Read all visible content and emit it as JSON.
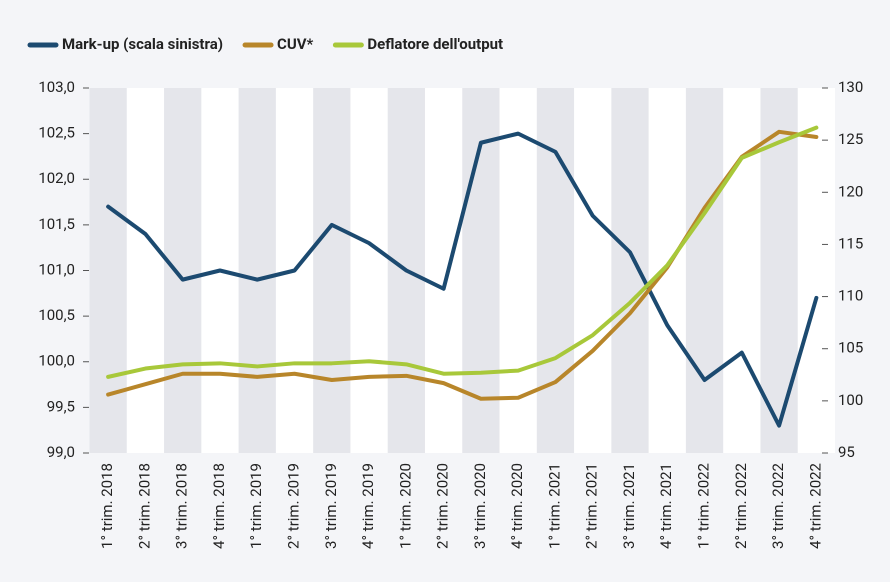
{
  "chart_data": {
    "type": "line",
    "categories": [
      "1° trim. 2018",
      "2° trim. 2018",
      "3° trim. 2018",
      "4° trim. 2018",
      "1° trim. 2019",
      "2° trim. 2019",
      "3° trim. 2019",
      "4° trim. 2019",
      "1° trim. 2020",
      "2° trim. 2020",
      "3° trim. 2020",
      "4° trim. 2020",
      "1° trim. 2021",
      "2° trim. 2021",
      "3° trim. 2021",
      "4° trim. 2021",
      "1° trim. 2022",
      "2° trim. 2022",
      "3° trim. 2022",
      "4° trim. 2022"
    ],
    "series": [
      {
        "name": "Mark-up (scala sinistra)",
        "color": "#1c4a70",
        "values": [
          101.7,
          101.4,
          100.9,
          101.0,
          100.9,
          101.0,
          101.5,
          101.3,
          101.0,
          100.8,
          102.4,
          102.5,
          102.3,
          101.6,
          101.2,
          100.4,
          99.8,
          100.1,
          99.3,
          100.7
        ]
      },
      {
        "name": "CUV*",
        "color": "#b8862a",
        "axis": "y2",
        "values": [
          100.6,
          101.6,
          102.6,
          102.6,
          102.3,
          102.6,
          102.0,
          102.3,
          102.4,
          101.7,
          100.2,
          100.3,
          101.8,
          104.8,
          108.4,
          112.8,
          118.5,
          123.4,
          125.8,
          125.3
        ]
      },
      {
        "name": "Deflatore dell'output",
        "color": "#a8c83a",
        "axis": "y2",
        "values": [
          102.3,
          103.1,
          103.5,
          103.6,
          103.3,
          103.6,
          103.6,
          103.8,
          103.5,
          102.6,
          102.7,
          102.9,
          104.1,
          106.3,
          109.4,
          113.0,
          118.0,
          123.3,
          124.8,
          126.2
        ]
      }
    ],
    "ylim": [
      99,
      103
    ],
    "yticks": [
      {
        "value": 99,
        "label": "99,0"
      },
      {
        "value": 99.5,
        "label": "99,5"
      },
      {
        "value": 100,
        "label": "100,0"
      },
      {
        "value": 100.5,
        "label": "100,5"
      },
      {
        "value": 101,
        "label": "101,0"
      },
      {
        "value": 101.5,
        "label": "101,5"
      },
      {
        "value": 102,
        "label": "102,0"
      },
      {
        "value": 102.5,
        "label": "102,5"
      },
      {
        "value": 103,
        "label": "103,0"
      }
    ],
    "y2lim": [
      95,
      130
    ],
    "y2ticks": [
      95,
      100,
      105,
      110,
      115,
      120,
      125,
      130
    ],
    "legend": "top"
  }
}
